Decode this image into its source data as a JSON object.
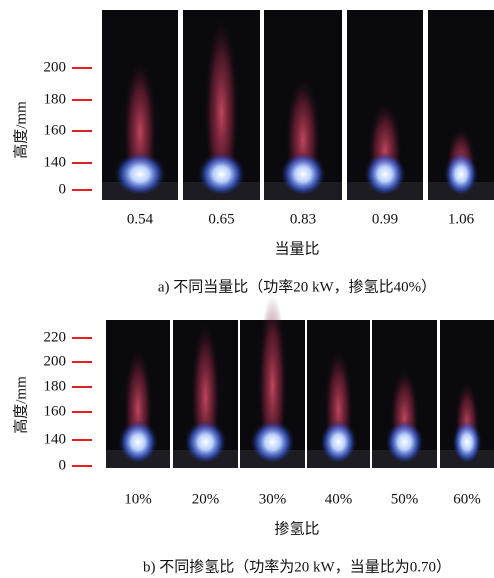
{
  "panels": [
    {
      "y_label": "高度/mm",
      "yticks": [
        "200",
        "180",
        "160",
        "140",
        "0"
      ],
      "photo_labels": [
        "0.54",
        "0.65",
        "0.83",
        "0.99",
        "1.06"
      ],
      "x_label": "当量比",
      "caption": "a) 不同当量比（功率20 kW，掺氢比40%）"
    },
    {
      "y_label": "高度/mm",
      "yticks": [
        "220",
        "200",
        "180",
        "160",
        "140",
        "0"
      ],
      "photo_labels": [
        "10%",
        "20%",
        "30%",
        "40%",
        "50%",
        "60%"
      ],
      "x_label": "掺氢比",
      "caption": "b) 不同掺氢比（功率为20 kW，当量比为0.70）"
    }
  ]
}
